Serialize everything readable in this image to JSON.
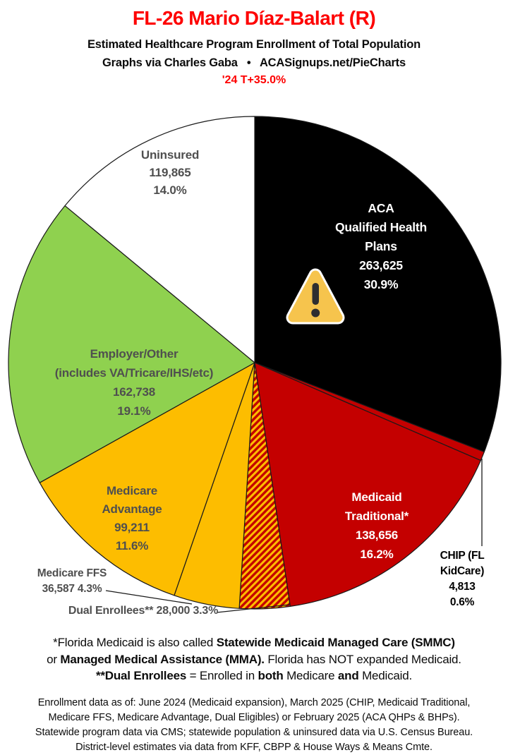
{
  "header": {
    "title": "FL-26 Mario Díaz-Balart (R)",
    "subtitle": "Estimated Healthcare Program Enrollment of Total Population",
    "credit": "Graphs via Charles Gaba   •   ACASignups.net/PieCharts",
    "margin_line": "'24 T+35.0%"
  },
  "colors": {
    "title_red": "#fe0000",
    "slice_black": "#000000",
    "slice_red": "#c40000",
    "slice_gold": "#fdbd00",
    "slice_green": "#8fd14f",
    "slice_white": "#ffffff",
    "hatch_stripe_gold": "#fdbd00",
    "hatch_base_red": "#c40000",
    "outline": "#1a1a1a",
    "label_dark_gray": "#4f4f4f",
    "warning_fill": "#f6c44d",
    "warning_glyph": "#2e2e30"
  },
  "icons": {
    "warning": "warning-triangle-icon"
  },
  "chart_data": {
    "type": "pie",
    "title": "Estimated Healthcare Program Enrollment of Total Population",
    "start_angle_deg": 0,
    "direction": "clockwise",
    "total_pct": 100.0,
    "slices": [
      {
        "name": "ACA Qualified Health Plans",
        "value": 263625,
        "pct": 30.9,
        "color": "#000000",
        "label_color": "#ffffff",
        "label_lines": [
          "ACA",
          "Qualified Health Plans",
          "263,625",
          "30.9%"
        ]
      },
      {
        "name": "CHIP (FL KidCare)",
        "value": 4813,
        "pct": 0.6,
        "color": "#c40000",
        "label_color": "#000000",
        "label_lines": [
          "CHIP (FL KidCare)",
          "4,813 0.6%"
        ]
      },
      {
        "name": "Medicaid Traditional*",
        "value": 138656,
        "pct": 16.2,
        "color": "#c40000",
        "label_color": "#ffffff",
        "label_lines": [
          "Medicaid",
          "Traditional*",
          "138,656",
          "16.2%"
        ]
      },
      {
        "name": "Dual Enrollees**",
        "value": 28000,
        "pct": 3.3,
        "color": "#c40000",
        "pattern": "diagonal-stripes",
        "pattern_color": "#fdbd00",
        "label_color": "#4f4f4f",
        "label_lines": [
          "Dual Enrollees** 28,000 3.3%"
        ]
      },
      {
        "name": "Medicare FFS",
        "value": 36587,
        "pct": 4.3,
        "color": "#fdbd00",
        "label_color": "#4f4f4f",
        "label_lines": [
          "Medicare FFS",
          "36,587 4.3%"
        ]
      },
      {
        "name": "Medicare Advantage",
        "value": 99211,
        "pct": 11.6,
        "color": "#fdbd00",
        "label_color": "#4f4f4f",
        "label_lines": [
          "Medicare",
          "Advantage",
          "99,211",
          "11.6%"
        ]
      },
      {
        "name": "Employer/Other",
        "value": 162738,
        "pct": 19.1,
        "color": "#8fd14f",
        "label_color": "#4f4f4f",
        "label_lines": [
          "Employer/Other",
          "(includes VA/Tricare/IHS/etc)",
          "162,738",
          "19.1%"
        ]
      },
      {
        "name": "Uninsured",
        "value": 119865,
        "pct": 14.0,
        "color": "#ffffff",
        "label_color": "#4f4f4f",
        "label_lines": [
          "Uninsured",
          "119,865",
          "14.0%"
        ]
      }
    ]
  },
  "footnotes": {
    "lines": [
      {
        "segments": [
          {
            "t": "*Florida Medicaid is also called ",
            "b": false
          },
          {
            "t": "Statewide Medicaid Managed Care (SMMC)",
            "b": true
          }
        ]
      },
      {
        "segments": [
          {
            "t": "or ",
            "b": false
          },
          {
            "t": "Managed Medical Assistance (MMA).",
            "b": true
          },
          {
            "t": " Florida has NOT expanded Medicaid.",
            "b": false
          }
        ]
      },
      {
        "segments": [
          {
            "t": "**Dual Enrollees",
            "b": true
          },
          {
            "t": " = Enrolled in ",
            "b": false
          },
          {
            "t": "both",
            "b": true
          },
          {
            "t": " Medicare ",
            "b": false
          },
          {
            "t": "and",
            "b": true
          },
          {
            "t": " Medicaid.",
            "b": false
          }
        ]
      }
    ]
  },
  "sources": {
    "lines": [
      "Enrollment data as of: June 2024 (Medicaid expansion), March 2025 (CHIP, Medicaid Traditional,",
      "Medicare FFS, Medicare Advantage, Dual Eligibles) or February 2025 (ACA QHPs & BHPs).",
      "Statewide program data via CMS; statewide population & uninsured data via U.S. Census Bureau.",
      "District-level estimates via data from KFF, CBPP & House Ways & Means Cmte."
    ]
  }
}
